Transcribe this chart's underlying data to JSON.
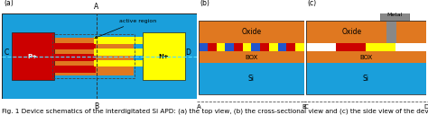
{
  "fig_width": 4.74,
  "fig_height": 1.28,
  "dpi": 100,
  "bg_color": "#ffffff",
  "caption": "Fig. 1 Device schematics of the interdigitated Si APD: (a) the top view, (b) the cross-sectional view and (c) the side view of the device",
  "caption_fontsize": 5.2,
  "panel_a": {
    "label": "(a)",
    "bg": "#1a9fdb",
    "p_color": "#cc0000",
    "n_color": "#ffff00",
    "orange_color": "#e07820",
    "finger_blue": "#2255cc",
    "dashed_color": "#55ddff",
    "ab_dashed_color": "#333333",
    "active_border_color": "#333333"
  },
  "panel_b": {
    "label": "(b)",
    "oxide_color": "#e07820",
    "box_color": "#e07820",
    "si_color": "#1a9fdb",
    "white_color": "#ffffff",
    "stripe_colors": [
      "#2255cc",
      "#cc0000",
      "#ffff00",
      "#2255cc",
      "#cc0000",
      "#ffff00",
      "#2255cc",
      "#cc0000",
      "#ffff00",
      "#2255cc",
      "#cc0000",
      "#ffff00"
    ],
    "border_color": "#333333"
  },
  "panel_c": {
    "label": "(c)",
    "metal_color": "#888888",
    "metal_label": "Metal",
    "oxide_color": "#e07820",
    "box_color": "#e07820",
    "si_color": "#1a9fdb",
    "white_color": "#ffffff",
    "stripe_colors": [
      "#cc0000",
      "#ffff00"
    ],
    "border_color": "#333333"
  }
}
